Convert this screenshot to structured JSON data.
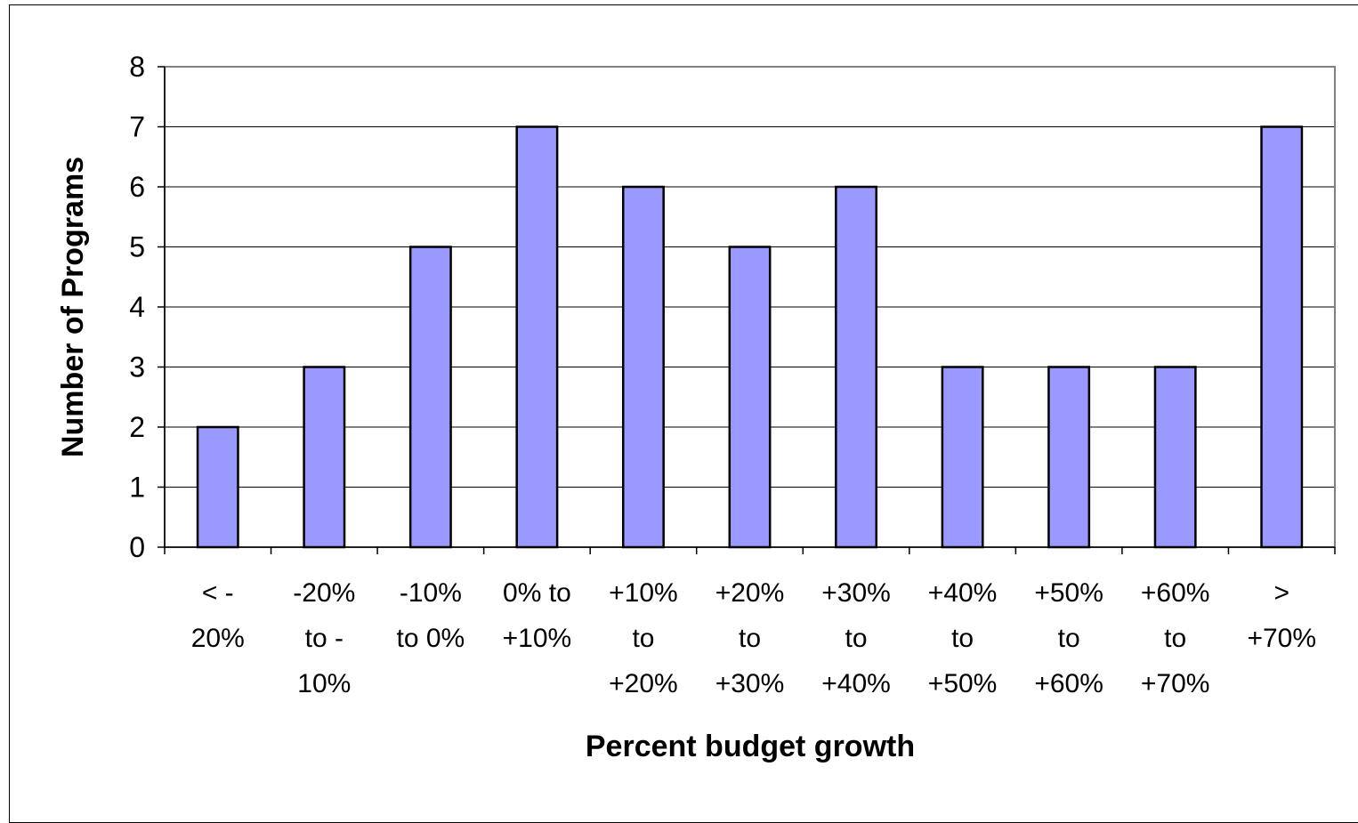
{
  "chart_data": {
    "type": "bar",
    "categories": [
      [
        "< -",
        "20%"
      ],
      [
        "-20%",
        "to -",
        "10%"
      ],
      [
        "-10%",
        "to 0%"
      ],
      [
        "0% to",
        "+10%"
      ],
      [
        "+10%",
        "to",
        "+20%"
      ],
      [
        "+20%",
        "to",
        "+30%"
      ],
      [
        "+30%",
        "to",
        "+40%"
      ],
      [
        "+40%",
        "to",
        "+50%"
      ],
      [
        "+50%",
        "to",
        "+60%"
      ],
      [
        "+60%",
        "to",
        "+70%"
      ],
      [
        ">",
        "+70%"
      ]
    ],
    "values": [
      2,
      3,
      5,
      7,
      6,
      5,
      6,
      3,
      3,
      3,
      7
    ],
    "xlabel": "Percent budget growth",
    "ylabel": "Number of Programs",
    "ylim": [
      0,
      8
    ],
    "yticks": [
      0,
      1,
      2,
      3,
      4,
      5,
      6,
      7,
      8
    ],
    "grid": true,
    "bar_color": "#9999ff",
    "bar_outline": "#000000",
    "plot_border_color": "#808080"
  }
}
